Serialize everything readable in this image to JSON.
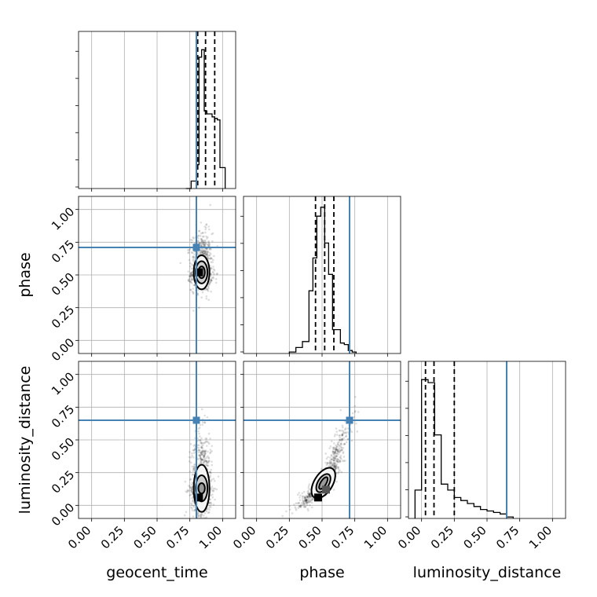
{
  "chart_data": {
    "type": "corner",
    "parameters": [
      "geocent_time",
      "phase",
      "luminosity_distance"
    ],
    "axis_range": [
      -0.1,
      1.1
    ],
    "ticks": [
      0.0,
      0.25,
      0.5,
      0.75,
      1.0
    ],
    "tick_labels": [
      "0.00",
      "0.25",
      "0.50",
      "0.75",
      "1.00"
    ],
    "grid": true,
    "colors": {
      "truth": "#4682b4",
      "ink": "#000000",
      "grid": "#b0b0b0"
    },
    "truths": {
      "geocent_time": 0.8,
      "phase": 0.71,
      "luminosity_distance": 0.65
    },
    "quantiles": {
      "geocent_time": [
        0.81,
        0.87,
        0.94
      ],
      "phase": [
        0.45,
        0.52,
        0.59
      ],
      "luminosity_distance": [
        0.03,
        0.095,
        0.25
      ]
    },
    "histograms": {
      "geocent_time": {
        "edges": [
          0.72,
          0.76,
          0.8,
          0.82,
          0.84,
          0.86,
          0.88,
          0.9,
          0.92,
          0.94,
          0.96,
          0.98,
          1.02
        ],
        "counts": [
          0,
          0.05,
          0.16,
          0.88,
          0.93,
          0.52,
          0.5,
          0.5,
          0.48,
          0.47,
          0.46,
          0.14
        ]
      },
      "phase": {
        "edges": [
          0.25,
          0.3,
          0.35,
          0.4,
          0.43,
          0.46,
          0.49,
          0.52,
          0.55,
          0.58,
          0.61,
          0.64,
          0.67,
          0.7,
          0.73,
          0.76
        ],
        "counts": [
          0.01,
          0.04,
          0.08,
          0.42,
          0.64,
          0.92,
          0.98,
          0.74,
          0.53,
          0.16,
          0.16,
          0.07,
          0.06,
          0.02,
          0.01
        ]
      },
      "luminosity_distance": {
        "edges": [
          -0.05,
          0.0,
          0.05,
          0.1,
          0.15,
          0.2,
          0.25,
          0.3,
          0.35,
          0.4,
          0.45,
          0.5,
          0.55,
          0.6,
          0.65,
          0.7
        ],
        "counts": [
          0.19,
          0.93,
          0.91,
          0.56,
          0.23,
          0.19,
          0.14,
          0.12,
          0.1,
          0.08,
          0.06,
          0.05,
          0.04,
          0.03,
          0.01
        ]
      }
    },
    "pairs": [
      {
        "x": "geocent_time",
        "y": "phase",
        "center": [
          0.84,
          0.52
        ],
        "spread": [
          0.04,
          0.1
        ],
        "corr": 0.0,
        "contours": [
          [
            0.025,
            0.045
          ],
          [
            0.045,
            0.085
          ],
          [
            0.06,
            0.13
          ]
        ],
        "peak": [
          0.82,
          0.52
        ]
      },
      {
        "x": "geocent_time",
        "y": "luminosity_distance",
        "center": [
          0.84,
          0.13
        ],
        "spread": [
          0.04,
          0.14
        ],
        "corr": 0.0,
        "contours": [
          [
            0.025,
            0.04
          ],
          [
            0.045,
            0.1
          ],
          [
            0.06,
            0.18
          ]
        ],
        "peak": [
          0.82,
          0.06
        ]
      },
      {
        "x": "phase",
        "y": "luminosity_distance",
        "center": [
          0.52,
          0.15
        ],
        "spread": [
          0.09,
          0.15
        ],
        "corr": 0.9,
        "contours": [
          [
            0.06,
            0.02
          ],
          [
            0.12,
            0.03
          ],
          [
            0.2,
            0.05
          ]
        ],
        "peak": [
          0.47,
          0.06
        ],
        "peak2": [
          0.53,
          0.12
        ]
      }
    ]
  }
}
